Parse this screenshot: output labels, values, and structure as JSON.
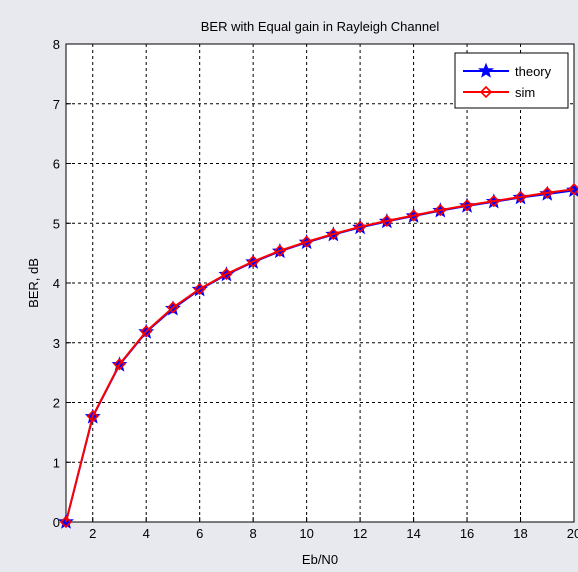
{
  "chart_data": {
    "type": "line",
    "title": "BER with Equal gain in Rayleigh Channel",
    "xlabel": "Eb/N0",
    "ylabel": "BER, dB",
    "xlim": [
      1,
      20
    ],
    "ylim": [
      0,
      8
    ],
    "xticks": [
      2,
      4,
      6,
      8,
      10,
      12,
      14,
      16,
      18,
      20
    ],
    "yticks": [
      0,
      1,
      2,
      3,
      4,
      5,
      6,
      7,
      8
    ],
    "grid": true,
    "legend_position": "top-right",
    "x": [
      1,
      2,
      3,
      4,
      5,
      6,
      7,
      8,
      9,
      10,
      11,
      12,
      13,
      14,
      15,
      16,
      17,
      18,
      19,
      20
    ],
    "series": [
      {
        "name": "theory",
        "color": "#0000ff",
        "marker": "star",
        "values": [
          0,
          1.76,
          2.63,
          3.18,
          3.57,
          3.89,
          4.14,
          4.35,
          4.53,
          4.68,
          4.81,
          4.93,
          5.03,
          5.12,
          5.21,
          5.29,
          5.36,
          5.43,
          5.49,
          5.55
        ]
      },
      {
        "name": "sim",
        "color": "#ff0000",
        "marker": "diamond",
        "values": [
          0,
          1.77,
          2.64,
          3.19,
          3.59,
          3.9,
          4.15,
          4.36,
          4.54,
          4.69,
          4.82,
          4.94,
          5.04,
          5.13,
          5.22,
          5.3,
          5.37,
          5.44,
          5.51,
          5.57
        ]
      }
    ]
  }
}
